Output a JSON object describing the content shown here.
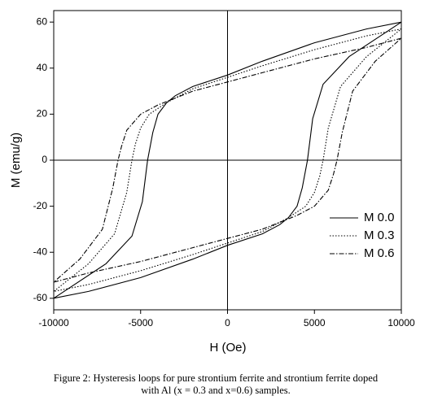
{
  "chart_data": {
    "type": "line",
    "xlabel": "H (Oe)",
    "ylabel": "M (emu/g)",
    "xlim": [
      -10000,
      10000
    ],
    "ylim": [
      -65,
      65
    ],
    "xticks": [
      -10000,
      -5000,
      0,
      5000,
      10000
    ],
    "yticks": [
      -60,
      -40,
      -20,
      0,
      20,
      40,
      60
    ],
    "zero_lines": true,
    "legend": "lower right",
    "series": [
      {
        "name": "M 0.0",
        "color": "#000000",
        "linestyle": "solid",
        "x": [
          10000,
          8000,
          5000,
          2000,
          0,
          -2000,
          -3000,
          -3500,
          -4000,
          -4300,
          -4600,
          -4900,
          -5500,
          -7000,
          -10000,
          -8000,
          -5000,
          -2000,
          0,
          2000,
          3000,
          3500,
          4000,
          4300,
          4600,
          4900,
          5500,
          7000,
          10000
        ],
        "values": [
          60,
          57,
          51,
          43,
          37,
          32,
          28,
          25,
          20,
          12,
          0,
          -18,
          -33,
          -45,
          -60,
          -57,
          -51,
          -43,
          -37,
          -32,
          -28,
          -25,
          -20,
          -12,
          0,
          18,
          33,
          45,
          60
        ]
      },
      {
        "name": "M 0.3",
        "color": "#000000",
        "linestyle": "dotted",
        "x": [
          10000,
          8000,
          5000,
          2000,
          0,
          -2000,
          -3500,
          -4500,
          -5000,
          -5300,
          -5500,
          -5800,
          -6500,
          -8000,
          -10000,
          -8000,
          -5000,
          -2000,
          0,
          2000,
          3500,
          4500,
          5000,
          5300,
          5500,
          5800,
          6500,
          8000,
          10000
        ],
        "values": [
          57,
          54,
          48,
          41,
          36,
          31,
          25,
          20,
          14,
          7,
          0,
          -14,
          -32,
          -45,
          -57,
          -54,
          -48,
          -41,
          -36,
          -31,
          -25,
          -20,
          -14,
          -7,
          0,
          14,
          32,
          45,
          57
        ]
      },
      {
        "name": "M 0.6",
        "color": "#000000",
        "linestyle": "dashdot",
        "x": [
          10000,
          8000,
          5000,
          2000,
          0,
          -2000,
          -4000,
          -5000,
          -5800,
          -6100,
          -6300,
          -6600,
          -7200,
          -8500,
          -10000,
          -8000,
          -5000,
          -2000,
          0,
          2000,
          4000,
          5000,
          5800,
          6100,
          6300,
          6600,
          7200,
          8500,
          10000
        ],
        "values": [
          53,
          49,
          44,
          38,
          34,
          30,
          24,
          20,
          13,
          6,
          0,
          -12,
          -30,
          -43,
          -53,
          -49,
          -44,
          -38,
          -34,
          -30,
          -24,
          -20,
          -13,
          -6,
          0,
          12,
          30,
          43,
          53
        ]
      }
    ]
  },
  "caption": "Figure 2: Hysteresis loops for pure strontium ferrite and strontium ferrite doped with Al (x = 0.3 and x=0.6) samples."
}
